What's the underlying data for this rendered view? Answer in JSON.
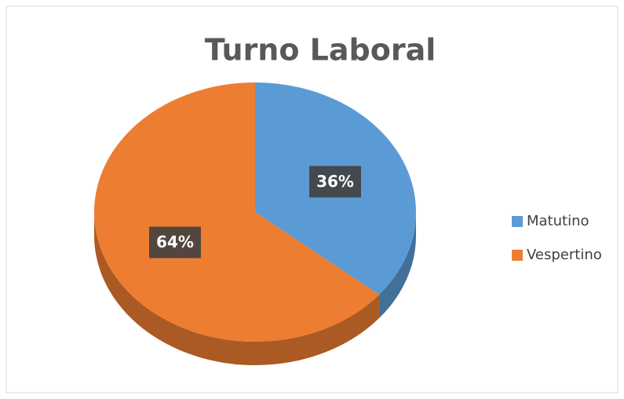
{
  "chart_data": {
    "type": "pie",
    "title": "Turno Laboral",
    "categories": [
      "Matutino",
      "Vespertino"
    ],
    "values": [
      36,
      64
    ],
    "value_labels": [
      "36%",
      "64%"
    ],
    "colors": [
      "#5b9bd5",
      "#ed7d31"
    ],
    "legend": "right"
  }
}
